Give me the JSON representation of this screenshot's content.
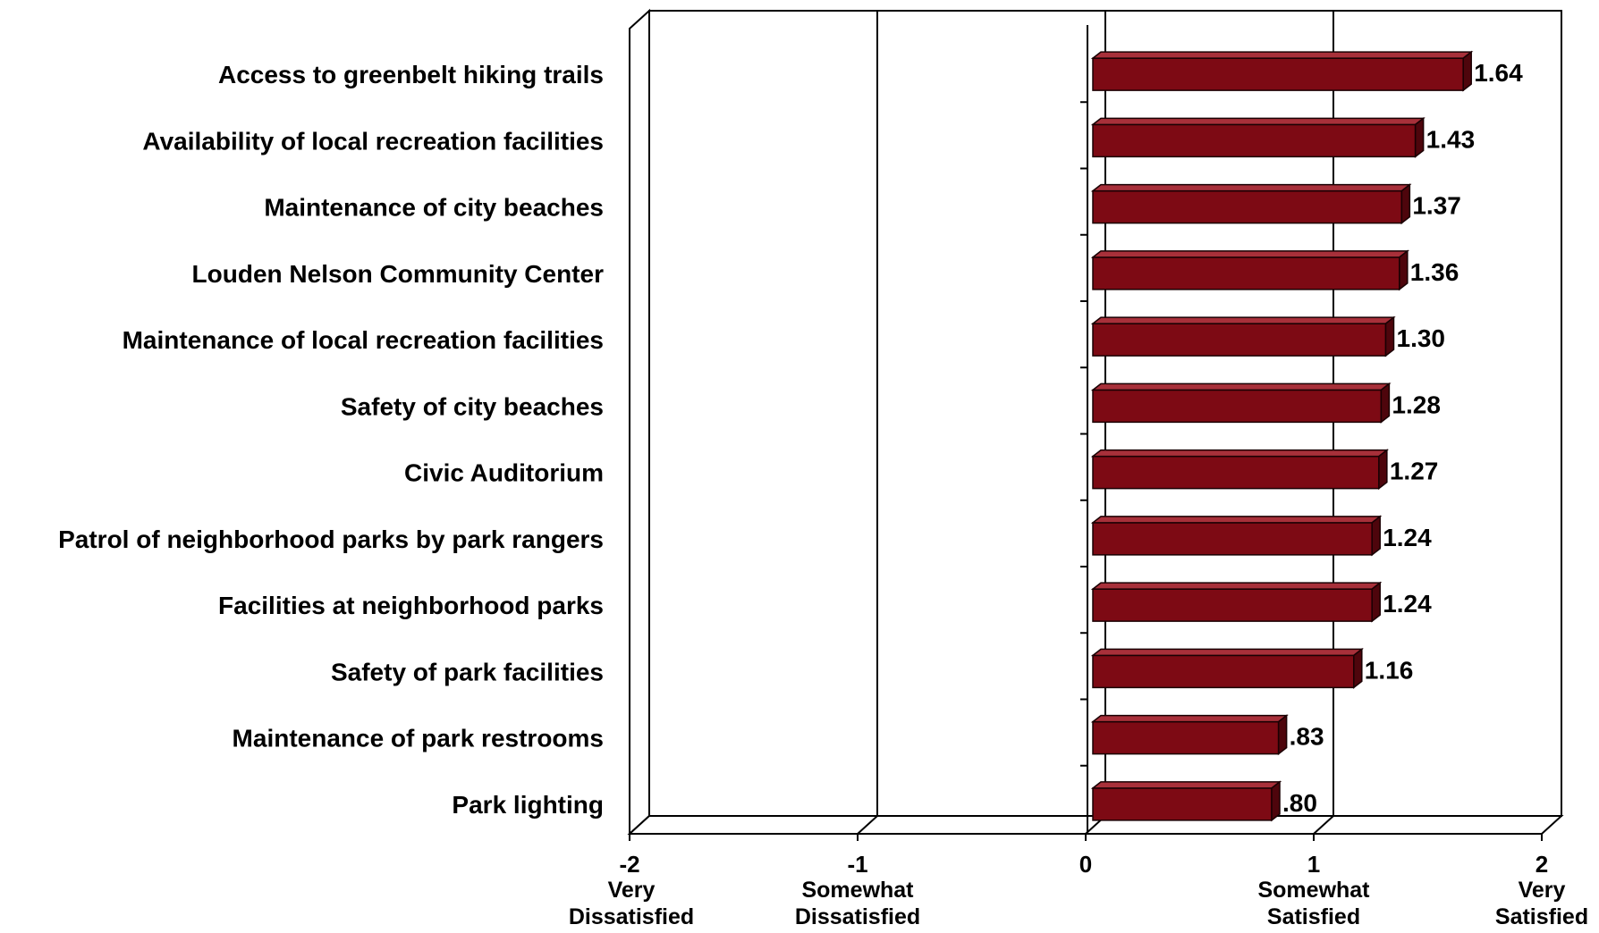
{
  "chart_data": {
    "type": "bar",
    "orientation": "horizontal",
    "categories": [
      "Access to greenbelt hiking trails",
      "Availability of local recreation facilities",
      "Maintenance of city beaches",
      "Louden Nelson Community Center",
      "Maintenance of local recreation facilities",
      "Safety of city beaches",
      "Civic Auditorium",
      "Patrol of neighborhood parks by park rangers",
      "Facilities at neighborhood parks",
      "Safety of park facilities",
      "Maintenance of park restrooms",
      "Park lighting"
    ],
    "values": [
      1.64,
      1.43,
      1.37,
      1.36,
      1.3,
      1.28,
      1.27,
      1.24,
      1.24,
      1.16,
      0.83,
      0.8
    ],
    "value_labels": [
      "1.64",
      "1.43",
      "1.37",
      "1.36",
      "1.30",
      "1.28",
      "1.27",
      "1.24",
      "1.24",
      "1.16",
      ".83",
      ".80"
    ],
    "xlim": [
      -2,
      2
    ],
    "ticks": [
      {
        "value": -2,
        "label": "-2",
        "sub": [
          "Very",
          "Dissatisfied"
        ]
      },
      {
        "value": -1,
        "label": "-1",
        "sub": [
          "Somewhat",
          "Dissatisfied"
        ]
      },
      {
        "value": 0,
        "label": "0",
        "sub": []
      },
      {
        "value": 1,
        "label": "1",
        "sub": [
          "Somewhat",
          "Satisfied"
        ]
      },
      {
        "value": 2,
        "label": "2",
        "sub": [
          "Very",
          "Satisfied"
        ]
      }
    ],
    "grid": true,
    "style": "3d",
    "colors": {
      "bar_front": "#7d0a14",
      "bar_top": "#a8303a",
      "bar_side": "#4e050c",
      "gridline": "#000000"
    }
  }
}
